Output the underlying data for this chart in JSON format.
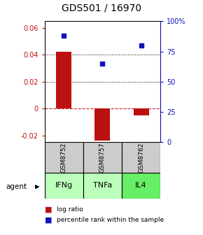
{
  "title": "GDS501 / 16970",
  "samples": [
    "GSM8752",
    "GSM8757",
    "GSM8762"
  ],
  "agents": [
    "IFNg",
    "TNFa",
    "IL4"
  ],
  "log_ratios": [
    0.042,
    -0.024,
    -0.005
  ],
  "percentile_ranks": [
    0.88,
    0.65,
    0.8
  ],
  "ylim_left": [
    -0.025,
    0.065
  ],
  "ylim_right": [
    0.0,
    1.0
  ],
  "yticks_left": [
    -0.02,
    0.0,
    0.02,
    0.04,
    0.06
  ],
  "ytick_labels_left": [
    "-0.02",
    "0",
    "0.02",
    "0.04",
    "0.06"
  ],
  "yticks_right": [
    0.0,
    0.25,
    0.5,
    0.75,
    1.0
  ],
  "ytick_labels_right": [
    "0",
    "25",
    "50",
    "75",
    "100%"
  ],
  "bar_color": "#bb1111",
  "dot_color": "#1111bb",
  "zero_line_color": "#cc2222",
  "sample_box_color": "#cccccc",
  "agent_colors": [
    "#bbffbb",
    "#bbffbb",
    "#66ee66"
  ],
  "background_color": "#ffffff",
  "title_fontsize": 10,
  "tick_fontsize": 7,
  "label_fontsize": 7.5
}
